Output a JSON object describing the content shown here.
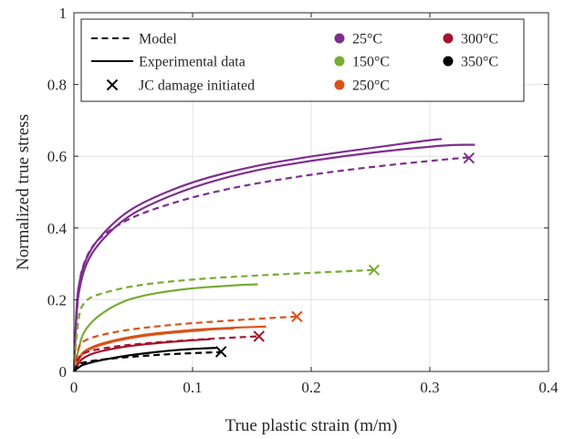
{
  "chart_data": {
    "type": "line",
    "xlabel": "True plastic strain (m/m)",
    "ylabel": "Normalized true stress",
    "xlim": [
      0,
      0.4
    ],
    "ylim": [
      0,
      1
    ],
    "xticks": [
      "0",
      "0.1",
      "0.2",
      "0.3",
      "0.4"
    ],
    "yticks": [
      "0",
      "0.2",
      "0.4",
      "0.6",
      "0.8",
      "1"
    ],
    "grid": true,
    "legend": {
      "placement": "top",
      "style_entries": [
        {
          "label": "Model",
          "style": "dashed"
        },
        {
          "label": "Experimental data",
          "style": "solid"
        },
        {
          "label": "JC damage initiated",
          "style": "x-marker"
        }
      ],
      "temperature_entries": [
        {
          "label": "25°C",
          "color": "#7E2F8E"
        },
        {
          "label": "150°C",
          "color": "#77AC30"
        },
        {
          "label": "250°C",
          "color": "#D95319"
        },
        {
          "label": "300°C",
          "color": "#A2142F"
        },
        {
          "label": "350°C",
          "color": "#000000"
        }
      ]
    },
    "series": [
      {
        "temperature": "25°C",
        "kind": "model",
        "color": "#7E2F8E",
        "x": [
          0,
          0.003,
          0.01,
          0.02,
          0.04,
          0.06,
          0.1,
          0.15,
          0.2,
          0.25,
          0.3,
          0.333
        ],
        "y": [
          0,
          0.24,
          0.32,
          0.37,
          0.415,
          0.445,
          0.487,
          0.523,
          0.549,
          0.57,
          0.587,
          0.597
        ],
        "damage": {
          "x": 0.333,
          "y": 0.595
        }
      },
      {
        "temperature": "25°C",
        "kind": "experimental",
        "color": "#7E2F8E",
        "x": [
          0,
          0.002,
          0.005,
          0.01,
          0.02,
          0.04,
          0.06,
          0.1,
          0.15,
          0.2,
          0.25,
          0.3,
          0.31
        ],
        "y": [
          0,
          0.19,
          0.26,
          0.315,
          0.37,
          0.435,
          0.475,
          0.53,
          0.572,
          0.6,
          0.623,
          0.645,
          0.648
        ]
      },
      {
        "temperature": "25°C",
        "kind": "experimental",
        "color": "#7E2F8E",
        "x": [
          0,
          0.002,
          0.005,
          0.01,
          0.02,
          0.04,
          0.06,
          0.1,
          0.15,
          0.2,
          0.25,
          0.3,
          0.32,
          0.338
        ],
        "y": [
          0,
          0.17,
          0.24,
          0.3,
          0.355,
          0.42,
          0.46,
          0.515,
          0.56,
          0.588,
          0.61,
          0.627,
          0.632,
          0.632
        ]
      },
      {
        "temperature": "150°C",
        "kind": "model",
        "color": "#77AC30",
        "x": [
          0,
          0.003,
          0.01,
          0.02,
          0.05,
          0.1,
          0.15,
          0.2,
          0.253
        ],
        "y": [
          0,
          0.16,
          0.2,
          0.215,
          0.24,
          0.257,
          0.267,
          0.275,
          0.283
        ],
        "damage": {
          "x": 0.253,
          "y": 0.283
        }
      },
      {
        "temperature": "150°C",
        "kind": "experimental",
        "color": "#77AC30",
        "x": [
          0,
          0.005,
          0.01,
          0.02,
          0.04,
          0.06,
          0.08,
          0.1,
          0.12,
          0.14,
          0.155
        ],
        "y": [
          0,
          0.085,
          0.12,
          0.155,
          0.195,
          0.213,
          0.224,
          0.232,
          0.237,
          0.241,
          0.243
        ]
      },
      {
        "temperature": "250°C",
        "kind": "model",
        "color": "#D95319",
        "x": [
          0,
          0.003,
          0.01,
          0.03,
          0.06,
          0.1,
          0.15,
          0.188
        ],
        "y": [
          0,
          0.07,
          0.09,
          0.108,
          0.123,
          0.135,
          0.146,
          0.153
        ],
        "damage": {
          "x": 0.188,
          "y": 0.153
        }
      },
      {
        "temperature": "250°C",
        "kind": "experimental",
        "color": "#D95319",
        "x": [
          0,
          0.005,
          0.01,
          0.02,
          0.04,
          0.06,
          0.08,
          0.1,
          0.12,
          0.14,
          0.162
        ],
        "y": [
          0,
          0.045,
          0.06,
          0.075,
          0.092,
          0.103,
          0.11,
          0.116,
          0.12,
          0.123,
          0.125
        ]
      },
      {
        "temperature": "250°C",
        "kind": "experimental",
        "color": "#D95319",
        "x": [
          0,
          0.005,
          0.01,
          0.02,
          0.04,
          0.06,
          0.08,
          0.1,
          0.12,
          0.135
        ],
        "y": [
          0,
          0.042,
          0.057,
          0.072,
          0.089,
          0.1,
          0.107,
          0.113,
          0.118,
          0.12
        ]
      },
      {
        "temperature": "300°C",
        "kind": "model",
        "color": "#A2142F",
        "x": [
          0,
          0.003,
          0.01,
          0.03,
          0.06,
          0.1,
          0.13,
          0.156
        ],
        "y": [
          0,
          0.04,
          0.055,
          0.068,
          0.079,
          0.088,
          0.094,
          0.098
        ],
        "damage": {
          "x": 0.156,
          "y": 0.098
        }
      },
      {
        "temperature": "300°C",
        "kind": "experimental",
        "color": "#A2142F",
        "x": [
          0,
          0.005,
          0.01,
          0.02,
          0.04,
          0.06,
          0.08,
          0.1,
          0.115
        ],
        "y": [
          0,
          0.03,
          0.042,
          0.055,
          0.068,
          0.076,
          0.082,
          0.087,
          0.09
        ]
      },
      {
        "temperature": "350°C",
        "kind": "model",
        "color": "#000000",
        "x": [
          0,
          0.003,
          0.01,
          0.03,
          0.06,
          0.09,
          0.124
        ],
        "y": [
          0,
          0.02,
          0.027,
          0.036,
          0.044,
          0.05,
          0.054
        ],
        "damage": {
          "x": 0.124,
          "y": 0.055
        }
      },
      {
        "temperature": "350°C",
        "kind": "experimental",
        "color": "#000000",
        "x": [
          0,
          0.005,
          0.01,
          0.02,
          0.04,
          0.06,
          0.08,
          0.1,
          0.12
        ],
        "y": [
          0,
          0.015,
          0.021,
          0.03,
          0.042,
          0.051,
          0.058,
          0.063,
          0.066
        ]
      }
    ]
  }
}
